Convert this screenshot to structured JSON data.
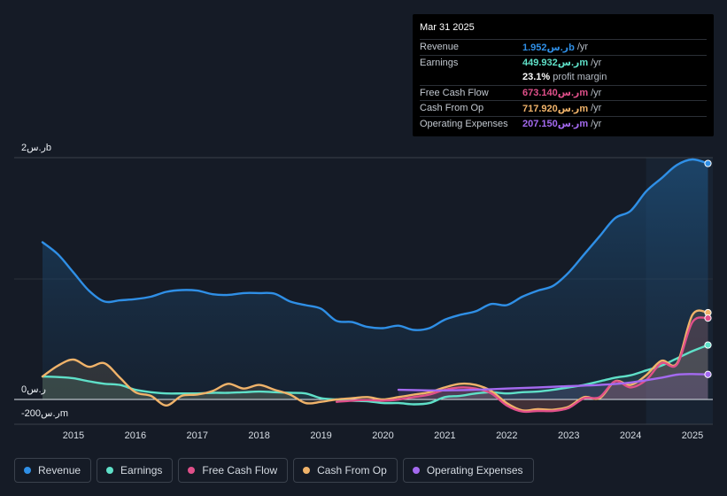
{
  "tooltip": {
    "date": "Mar 31 2025",
    "rows": [
      {
        "label": "Revenue",
        "value": "1.952ر.سb",
        "unit": "/yr",
        "color": "#2f8fe6"
      },
      {
        "label": "Earnings",
        "value": "449.932ر.سm",
        "unit": "/yr",
        "color": "#5fe0c8"
      },
      {
        "label": "",
        "value": "23.1%",
        "unit": "profit margin",
        "color": "#ffffff"
      },
      {
        "label": "Free Cash Flow",
        "value": "673.140ر.سm",
        "unit": "/yr",
        "color": "#e0508a"
      },
      {
        "label": "Cash From Op",
        "value": "717.920ر.سm",
        "unit": "/yr",
        "color": "#f0b36a"
      },
      {
        "label": "Operating Expenses",
        "value": "207.150ر.سm",
        "unit": "/yr",
        "color": "#a46af0"
      }
    ]
  },
  "legend": [
    {
      "label": "Revenue",
      "color": "#2f8fe6"
    },
    {
      "label": "Earnings",
      "color": "#5fe0c8"
    },
    {
      "label": "Free Cash Flow",
      "color": "#e0508a"
    },
    {
      "label": "Cash From Op",
      "color": "#f0b36a"
    },
    {
      "label": "Operating Expenses",
      "color": "#a46af0"
    }
  ],
  "chart_data": {
    "type": "area",
    "title": "",
    "units": "ر.س millions",
    "ylim": [
      -200,
      2000
    ],
    "y_tick_labels": [
      {
        "value": 2000,
        "label": "2ر.سb"
      },
      {
        "value": 0,
        "label": "0ر.س"
      },
      {
        "value": -200,
        "label": "-200ر.سm"
      }
    ],
    "xlim": [
      2014.5,
      2025.3
    ],
    "x_ticks": [
      2015,
      2016,
      2017,
      2018,
      2019,
      2020,
      2021,
      2022,
      2023,
      2024,
      2025
    ],
    "x_tick_labels": [
      "2015",
      "2016",
      "2017",
      "2018",
      "2019",
      "2020",
      "2021",
      "2022",
      "2023",
      "2024",
      "2025"
    ],
    "forecast_band_start": 2024.25,
    "series": [
      {
        "name": "Revenue",
        "color": "#2f8fe6",
        "points": [
          [
            2014.5,
            1300
          ],
          [
            2014.75,
            1200
          ],
          [
            2015.0,
            1050
          ],
          [
            2015.25,
            900
          ],
          [
            2015.5,
            810
          ],
          [
            2015.75,
            820
          ],
          [
            2016.0,
            830
          ],
          [
            2016.25,
            850
          ],
          [
            2016.5,
            890
          ],
          [
            2016.75,
            905
          ],
          [
            2017.0,
            900
          ],
          [
            2017.25,
            870
          ],
          [
            2017.5,
            865
          ],
          [
            2017.75,
            880
          ],
          [
            2018.0,
            880
          ],
          [
            2018.25,
            875
          ],
          [
            2018.5,
            810
          ],
          [
            2018.75,
            780
          ],
          [
            2019.0,
            750
          ],
          [
            2019.25,
            650
          ],
          [
            2019.5,
            640
          ],
          [
            2019.75,
            600
          ],
          [
            2020.0,
            590
          ],
          [
            2020.25,
            610
          ],
          [
            2020.5,
            575
          ],
          [
            2020.75,
            590
          ],
          [
            2021.0,
            660
          ],
          [
            2021.25,
            700
          ],
          [
            2021.5,
            730
          ],
          [
            2021.75,
            790
          ],
          [
            2022.0,
            780
          ],
          [
            2022.25,
            850
          ],
          [
            2022.5,
            900
          ],
          [
            2022.75,
            940
          ],
          [
            2023.0,
            1050
          ],
          [
            2023.25,
            1200
          ],
          [
            2023.5,
            1350
          ],
          [
            2023.75,
            1500
          ],
          [
            2024.0,
            1560
          ],
          [
            2024.25,
            1720
          ],
          [
            2024.5,
            1830
          ],
          [
            2024.75,
            1940
          ],
          [
            2025.0,
            1985
          ],
          [
            2025.25,
            1952
          ]
        ]
      },
      {
        "name": "Earnings",
        "color": "#5fe0c8",
        "points": [
          [
            2014.5,
            190
          ],
          [
            2014.75,
            185
          ],
          [
            2015.0,
            175
          ],
          [
            2015.25,
            150
          ],
          [
            2015.5,
            130
          ],
          [
            2015.75,
            120
          ],
          [
            2016.0,
            80
          ],
          [
            2016.25,
            60
          ],
          [
            2016.5,
            50
          ],
          [
            2016.75,
            50
          ],
          [
            2017.0,
            50
          ],
          [
            2017.25,
            55
          ],
          [
            2017.5,
            55
          ],
          [
            2017.75,
            60
          ],
          [
            2018.0,
            65
          ],
          [
            2018.25,
            60
          ],
          [
            2018.5,
            55
          ],
          [
            2018.75,
            50
          ],
          [
            2019.0,
            10
          ],
          [
            2019.25,
            0
          ],
          [
            2019.5,
            -10
          ],
          [
            2019.75,
            -15
          ],
          [
            2020.0,
            -30
          ],
          [
            2020.25,
            -30
          ],
          [
            2020.5,
            -40
          ],
          [
            2020.75,
            -30
          ],
          [
            2021.0,
            20
          ],
          [
            2021.25,
            30
          ],
          [
            2021.5,
            50
          ],
          [
            2021.75,
            60
          ],
          [
            2022.0,
            50
          ],
          [
            2022.25,
            60
          ],
          [
            2022.5,
            65
          ],
          [
            2022.75,
            80
          ],
          [
            2023.0,
            100
          ],
          [
            2023.25,
            120
          ],
          [
            2023.5,
            150
          ],
          [
            2023.75,
            180
          ],
          [
            2024.0,
            200
          ],
          [
            2024.25,
            240
          ],
          [
            2024.5,
            280
          ],
          [
            2024.75,
            340
          ],
          [
            2025.0,
            400
          ],
          [
            2025.25,
            450
          ]
        ]
      },
      {
        "name": "Free Cash Flow",
        "color": "#e0508a",
        "points": [
          [
            2019.25,
            -20
          ],
          [
            2019.5,
            -10
          ],
          [
            2019.75,
            -5
          ],
          [
            2020.0,
            -10
          ],
          [
            2020.25,
            0
          ],
          [
            2020.5,
            20
          ],
          [
            2020.75,
            40
          ],
          [
            2021.0,
            80
          ],
          [
            2021.25,
            100
          ],
          [
            2021.5,
            90
          ],
          [
            2021.75,
            50
          ],
          [
            2022.0,
            -50
          ],
          [
            2022.25,
            -100
          ],
          [
            2022.5,
            -95
          ],
          [
            2022.75,
            -95
          ],
          [
            2023.0,
            -70
          ],
          [
            2023.25,
            10
          ],
          [
            2023.5,
            20
          ],
          [
            2023.75,
            150
          ],
          [
            2024.0,
            100
          ],
          [
            2024.25,
            160
          ],
          [
            2024.5,
            300
          ],
          [
            2024.75,
            290
          ],
          [
            2025.0,
            640
          ],
          [
            2025.25,
            673
          ]
        ]
      },
      {
        "name": "Cash From Op",
        "color": "#f0b36a",
        "points": [
          [
            2014.5,
            190
          ],
          [
            2014.75,
            280
          ],
          [
            2015.0,
            330
          ],
          [
            2015.25,
            270
          ],
          [
            2015.5,
            300
          ],
          [
            2015.75,
            180
          ],
          [
            2016.0,
            60
          ],
          [
            2016.25,
            30
          ],
          [
            2016.5,
            -50
          ],
          [
            2016.75,
            30
          ],
          [
            2017.0,
            40
          ],
          [
            2017.25,
            70
          ],
          [
            2017.5,
            130
          ],
          [
            2017.75,
            90
          ],
          [
            2018.0,
            120
          ],
          [
            2018.25,
            80
          ],
          [
            2018.5,
            40
          ],
          [
            2018.75,
            -30
          ],
          [
            2019.0,
            -20
          ],
          [
            2019.25,
            0
          ],
          [
            2019.5,
            10
          ],
          [
            2019.75,
            20
          ],
          [
            2020.0,
            0
          ],
          [
            2020.25,
            20
          ],
          [
            2020.5,
            40
          ],
          [
            2020.75,
            60
          ],
          [
            2021.0,
            100
          ],
          [
            2021.25,
            130
          ],
          [
            2021.5,
            120
          ],
          [
            2021.75,
            70
          ],
          [
            2022.0,
            -30
          ],
          [
            2022.25,
            -90
          ],
          [
            2022.5,
            -80
          ],
          [
            2022.75,
            -85
          ],
          [
            2023.0,
            -60
          ],
          [
            2023.25,
            20
          ],
          [
            2023.5,
            10
          ],
          [
            2023.75,
            150
          ],
          [
            2024.0,
            120
          ],
          [
            2024.25,
            200
          ],
          [
            2024.5,
            320
          ],
          [
            2024.75,
            300
          ],
          [
            2025.0,
            700
          ],
          [
            2025.25,
            718
          ]
        ]
      },
      {
        "name": "Operating Expenses",
        "color": "#a46af0",
        "points": [
          [
            2020.25,
            80
          ],
          [
            2020.75,
            75
          ],
          [
            2021.0,
            75
          ],
          [
            2021.5,
            80
          ],
          [
            2022.0,
            90
          ],
          [
            2022.5,
            100
          ],
          [
            2023.0,
            110
          ],
          [
            2023.5,
            120
          ],
          [
            2024.0,
            140
          ],
          [
            2024.5,
            180
          ],
          [
            2024.75,
            205
          ],
          [
            2025.0,
            210
          ],
          [
            2025.25,
            207
          ]
        ]
      }
    ]
  }
}
